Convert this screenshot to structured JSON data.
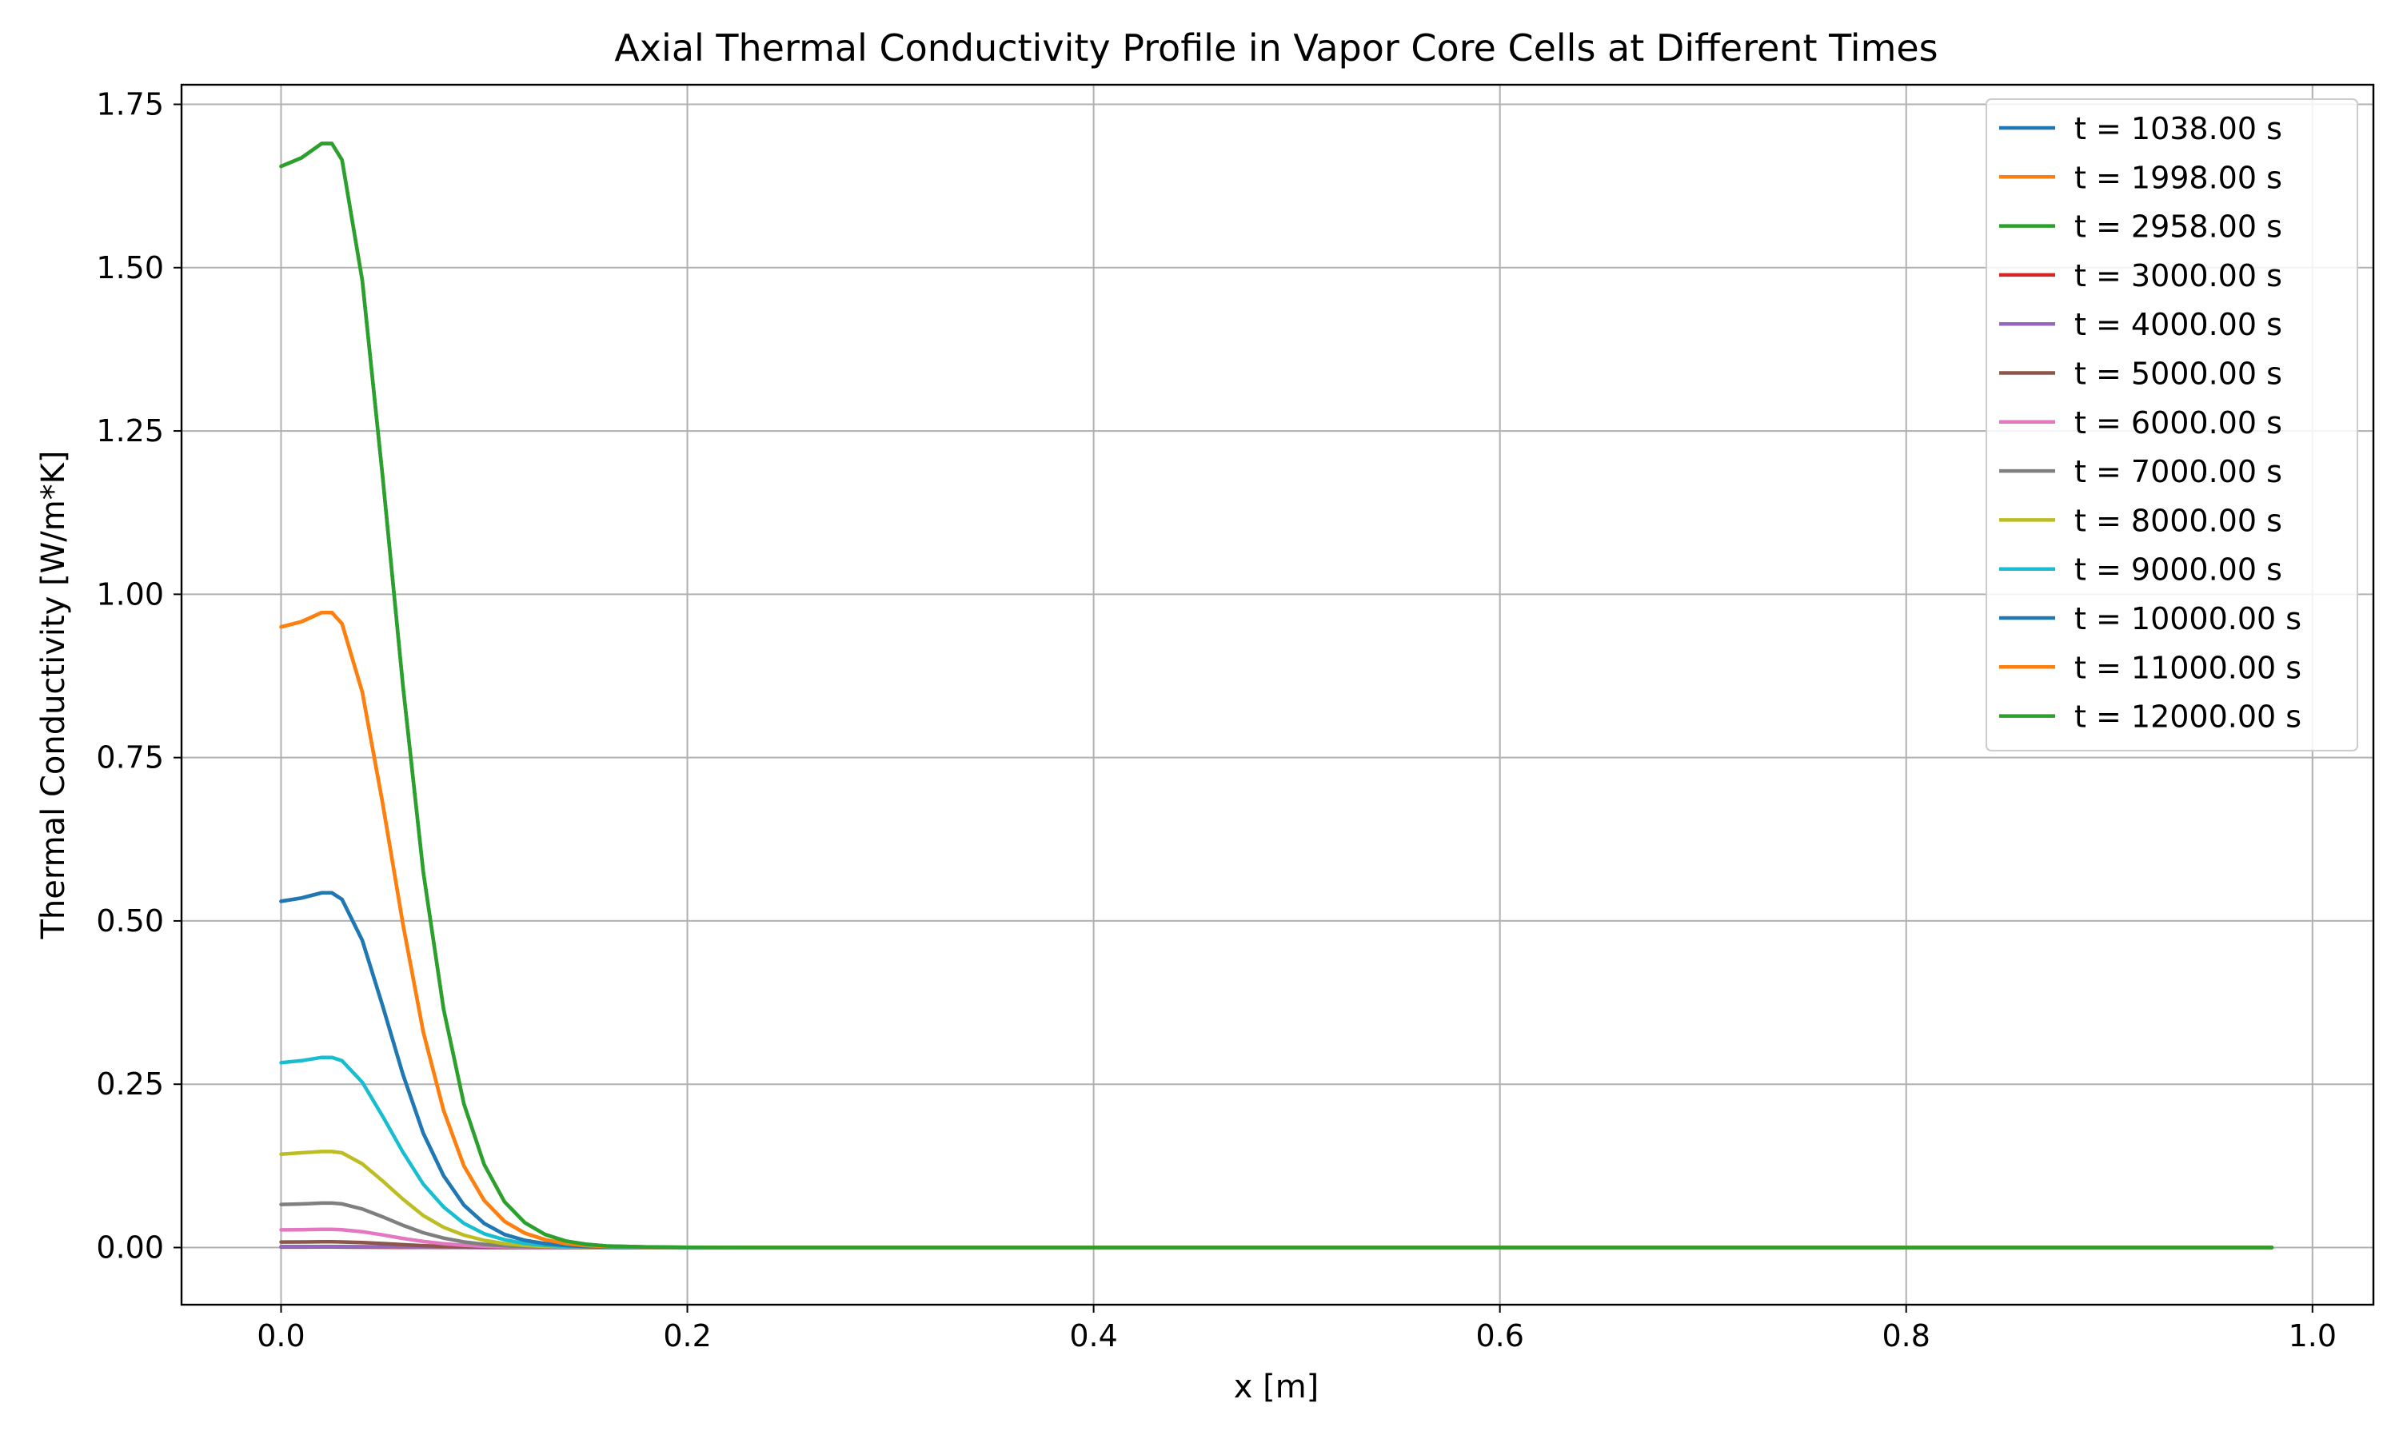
{
  "chart_data": {
    "type": "line",
    "title": "Axial Thermal Conductivity Profile in Vapor Core Cells at Different Times",
    "xlabel": "x [m]",
    "ylabel": "Thermal Conductivity [W/m*K]",
    "xlim": [
      -0.049,
      1.03
    ],
    "ylim": [
      -0.0875,
      1.78
    ],
    "xticks": [
      0.0,
      0.2,
      0.4,
      0.6,
      0.8,
      1.0
    ],
    "xtick_labels": [
      "0.0",
      "0.2",
      "0.4",
      "0.6",
      "0.8",
      "1.0"
    ],
    "yticks": [
      0.0,
      0.25,
      0.5,
      0.75,
      1.0,
      1.25,
      1.5,
      1.75
    ],
    "ytick_labels": [
      "0.00",
      "0.25",
      "0.50",
      "0.75",
      "1.00",
      "1.25",
      "1.50",
      "1.75"
    ],
    "grid": true,
    "legend_position": "top-right",
    "x": [
      0.0,
      0.01,
      0.02,
      0.025,
      0.03,
      0.04,
      0.05,
      0.06,
      0.07,
      0.08,
      0.09,
      0.1,
      0.11,
      0.12,
      0.13,
      0.14,
      0.15,
      0.16,
      0.18,
      0.2,
      0.25,
      0.3,
      0.4,
      0.5,
      0.6,
      0.7,
      0.8,
      0.9,
      0.98
    ],
    "series": [
      {
        "name": "t = 1038.00 s",
        "color": "#1f77b4",
        "values": [
          0.53,
          0.535,
          0.543,
          0.543,
          0.533,
          0.47,
          0.37,
          0.265,
          0.175,
          0.11,
          0.065,
          0.037,
          0.02,
          0.011,
          0.006,
          0.003,
          0.0015,
          0.0008,
          0.0003,
          0.0001,
          0,
          0,
          0,
          0,
          0,
          0,
          0,
          0,
          0
        ]
      },
      {
        "name": "t = 1998.00 s",
        "color": "#ff7f0e",
        "values": [
          0.95,
          0.958,
          0.972,
          0.972,
          0.955,
          0.85,
          0.68,
          0.495,
          0.33,
          0.21,
          0.125,
          0.072,
          0.04,
          0.022,
          0.012,
          0.006,
          0.003,
          0.0015,
          0.0005,
          0.0002,
          0,
          0,
          0,
          0,
          0,
          0,
          0,
          0,
          0
        ]
      },
      {
        "name": "t = 2958.00 s",
        "color": "#2ca02c",
        "values": [
          1.655,
          1.668,
          1.69,
          1.69,
          1.665,
          1.48,
          1.18,
          0.86,
          0.575,
          0.365,
          0.22,
          0.127,
          0.07,
          0.038,
          0.02,
          0.01,
          0.005,
          0.0025,
          0.0008,
          0.0003,
          0,
          0,
          0,
          0,
          0,
          0,
          0,
          0,
          0
        ]
      },
      {
        "name": "t = 3000.00 s",
        "color": "#d62728",
        "values": [
          0.0007,
          0.0007,
          0.0008,
          0.0008,
          0.0007,
          0.0006,
          0.0005,
          0.0004,
          0.0002,
          0.0001,
          0.0001,
          0,
          0,
          0,
          0,
          0,
          0,
          0,
          0,
          0,
          0,
          0,
          0,
          0,
          0,
          0,
          0,
          0,
          0
        ]
      },
      {
        "name": "t = 4000.00 s",
        "color": "#9467bd",
        "values": [
          0.0015,
          0.0015,
          0.0016,
          0.0016,
          0.0015,
          0.0013,
          0.0011,
          0.0008,
          0.0005,
          0.0003,
          0.0002,
          0.0001,
          0,
          0,
          0,
          0,
          0,
          0,
          0,
          0,
          0,
          0,
          0,
          0,
          0,
          0,
          0,
          0,
          0
        ]
      },
      {
        "name": "t = 5000.00 s",
        "color": "#8c564b",
        "values": [
          0.0085,
          0.0086,
          0.0088,
          0.0088,
          0.0086,
          0.0076,
          0.0061,
          0.0044,
          0.0029,
          0.0018,
          0.0011,
          0.0006,
          0.0003,
          0.0002,
          0.0001,
          0,
          0,
          0,
          0,
          0,
          0,
          0,
          0,
          0,
          0,
          0,
          0,
          0,
          0
        ]
      },
      {
        "name": "t = 6000.00 s",
        "color": "#e377c2",
        "values": [
          0.027,
          0.0273,
          0.0278,
          0.0278,
          0.0273,
          0.0242,
          0.0193,
          0.014,
          0.0093,
          0.0059,
          0.0035,
          0.002,
          0.0011,
          0.0006,
          0.0003,
          0.0002,
          0.0001,
          0,
          0,
          0,
          0,
          0,
          0,
          0,
          0,
          0,
          0,
          0,
          0
        ]
      },
      {
        "name": "t = 7000.00 s",
        "color": "#7f7f7f",
        "values": [
          0.066,
          0.0667,
          0.068,
          0.068,
          0.0668,
          0.059,
          0.047,
          0.034,
          0.0227,
          0.0144,
          0.0086,
          0.0049,
          0.0027,
          0.0015,
          0.0008,
          0.0004,
          0.0002,
          0.0001,
          0,
          0,
          0,
          0,
          0,
          0,
          0,
          0,
          0,
          0,
          0
        ]
      },
      {
        "name": "t = 8000.00 s",
        "color": "#bcbd22",
        "values": [
          0.143,
          0.145,
          0.147,
          0.147,
          0.145,
          0.128,
          0.102,
          0.074,
          0.049,
          0.031,
          0.019,
          0.011,
          0.006,
          0.0032,
          0.0017,
          0.0009,
          0.0004,
          0.0002,
          0.0001,
          0,
          0,
          0,
          0,
          0,
          0,
          0,
          0,
          0,
          0
        ]
      },
      {
        "name": "t = 9000.00 s",
        "color": "#17becf",
        "values": [
          0.283,
          0.286,
          0.291,
          0.291,
          0.286,
          0.253,
          0.201,
          0.146,
          0.097,
          0.062,
          0.037,
          0.021,
          0.012,
          0.0063,
          0.0034,
          0.0017,
          0.0009,
          0.0004,
          0.0001,
          0,
          0,
          0,
          0,
          0,
          0,
          0,
          0,
          0,
          0
        ]
      },
      {
        "name": "t = 10000.00 s",
        "color": "#1f77b4",
        "values": [
          0.53,
          0.535,
          0.543,
          0.543,
          0.533,
          0.47,
          0.37,
          0.265,
          0.175,
          0.11,
          0.065,
          0.037,
          0.02,
          0.011,
          0.006,
          0.003,
          0.0015,
          0.0008,
          0.0003,
          0.0001,
          0,
          0,
          0,
          0,
          0,
          0,
          0,
          0,
          0
        ]
      },
      {
        "name": "t = 11000.00 s",
        "color": "#ff7f0e",
        "values": [
          0.95,
          0.958,
          0.972,
          0.972,
          0.955,
          0.85,
          0.68,
          0.495,
          0.33,
          0.21,
          0.125,
          0.072,
          0.04,
          0.022,
          0.012,
          0.006,
          0.003,
          0.0015,
          0.0005,
          0.0002,
          0,
          0,
          0,
          0,
          0,
          0,
          0,
          0,
          0
        ]
      },
      {
        "name": "t = 12000.00 s",
        "color": "#2ca02c",
        "values": [
          1.655,
          1.668,
          1.69,
          1.69,
          1.665,
          1.48,
          1.18,
          0.86,
          0.575,
          0.365,
          0.22,
          0.127,
          0.07,
          0.038,
          0.02,
          0.01,
          0.005,
          0.0025,
          0.0008,
          0.0003,
          0,
          0,
          0,
          0,
          0,
          0,
          0,
          0,
          0
        ]
      }
    ]
  }
}
